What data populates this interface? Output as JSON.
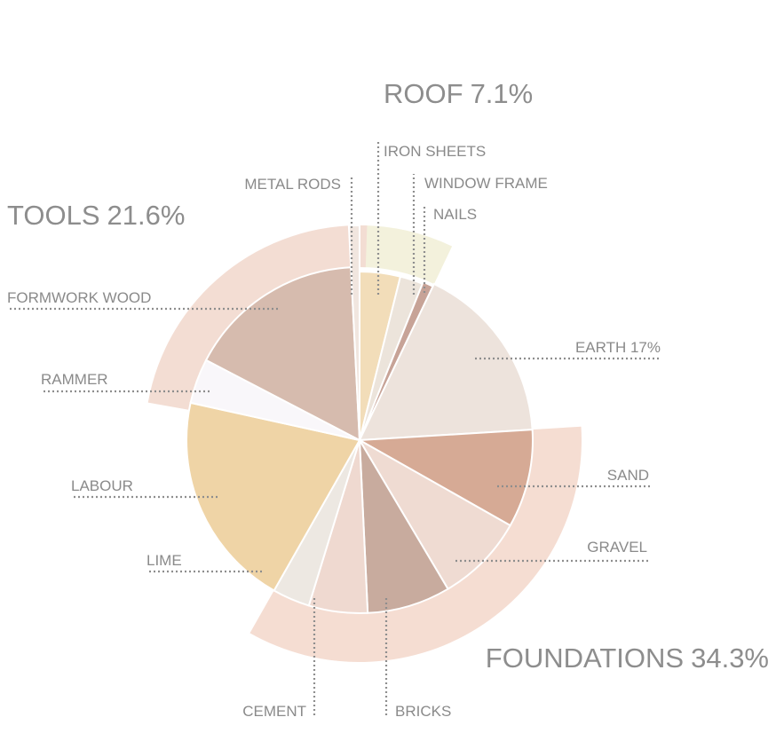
{
  "chart_data": {
    "type": "pie",
    "title": "",
    "groups": [
      {
        "name": "ROOF",
        "percent": "7.1%",
        "color": "#f3f1dc"
      },
      {
        "name": "TOOLS",
        "percent": "21.6%",
        "color": "#f3ddd3"
      },
      {
        "name": "FOUNDATIONS",
        "percent": "34.3%",
        "color": "#f5ddd2"
      }
    ],
    "slices": [
      {
        "label": "IRON SHEETS",
        "group": "ROOF",
        "value": 3.9,
        "color": "#f2ddb9"
      },
      {
        "label": "WINDOW FRAME",
        "group": "ROOF",
        "value": 2.2,
        "color": "#ece4db"
      },
      {
        "label": "NAILS",
        "group": "ROOF",
        "value": 1.0,
        "color": "#c7a397"
      },
      {
        "label": "EARTH 17%",
        "group": "",
        "value": 17.0,
        "color": "#ede3dc"
      },
      {
        "label": "SAND",
        "group": "FOUNDATIONS",
        "value": 9.2,
        "color": "#d6aa95"
      },
      {
        "label": "GRAVEL",
        "group": "FOUNDATIONS",
        "value": 8.3,
        "color": "#efdbd2"
      },
      {
        "label": "BRICKS",
        "group": "FOUNDATIONS",
        "value": 7.8,
        "color": "#c8ab9e"
      },
      {
        "label": "CEMENT",
        "group": "FOUNDATIONS",
        "value": 5.5,
        "color": "#efd9d0"
      },
      {
        "label": "LIME",
        "group": "FOUNDATIONS",
        "value": 3.5,
        "color": "#ede8e2"
      },
      {
        "label": "LABOUR",
        "group": "",
        "value": 20.3,
        "color": "#efd4a6"
      },
      {
        "label": "RAMMER",
        "group": "TOOLS",
        "value": 4.2,
        "color": "#f9f7fa"
      },
      {
        "label": "FORMWORK WOOD",
        "group": "TOOLS",
        "value": 16.6,
        "color": "#d6bbae"
      },
      {
        "label": "METAL RODS",
        "group": "TOOLS",
        "value": 0.8,
        "color": "#f1e6df"
      }
    ]
  }
}
